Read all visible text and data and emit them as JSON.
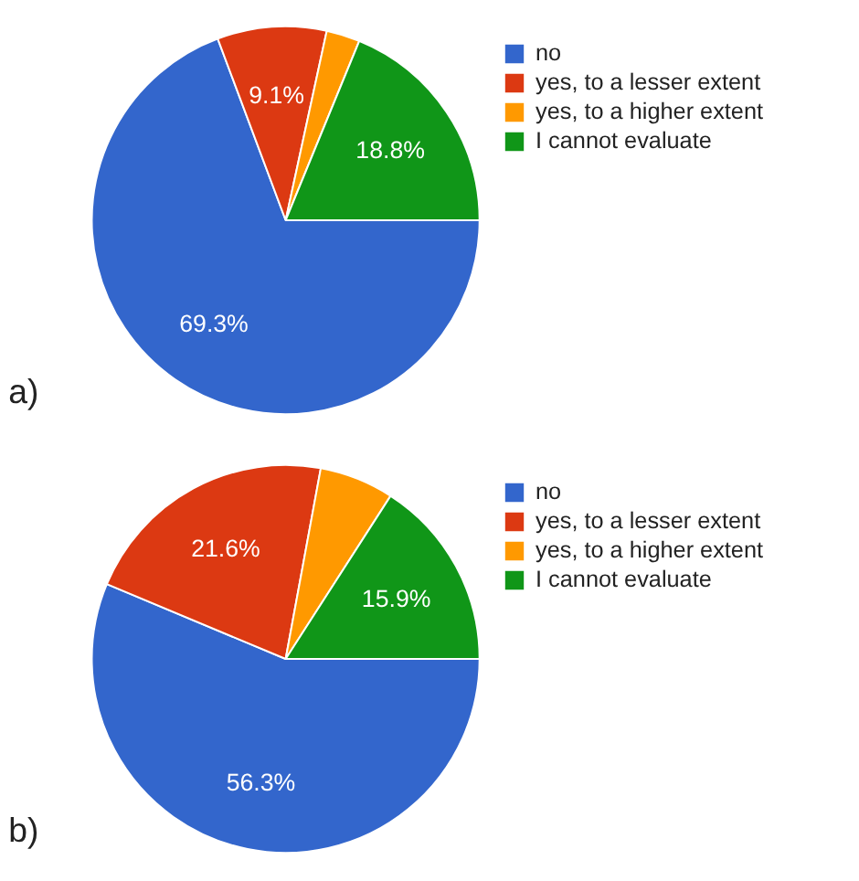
{
  "chart_data": [
    {
      "type": "pie",
      "categories": [
        "no",
        "yes, to a lesser extent",
        "yes, to a higher extent",
        "I cannot evaluate"
      ],
      "values": [
        69.3,
        9.1,
        2.8,
        18.8
      ],
      "colors": [
        "#3366cc",
        "#dc3912",
        "#ff9900",
        "#109618"
      ],
      "value_labels": [
        "69.3%",
        "9.1%",
        null,
        "18.8%"
      ],
      "legend": "right",
      "annotations": [
        "a)"
      ]
    },
    {
      "type": "pie",
      "categories": [
        "no",
        "yes, to a lesser extent",
        "yes, to a higher extent",
        "I cannot evaluate"
      ],
      "values": [
        56.3,
        21.6,
        6.2,
        15.9
      ],
      "colors": [
        "#3366cc",
        "#dc3912",
        "#ff9900",
        "#109618"
      ],
      "value_labels": [
        "56.3%",
        "21.6%",
        null,
        "15.9%"
      ],
      "legend": "right",
      "annotations": [
        "b)"
      ]
    }
  ]
}
